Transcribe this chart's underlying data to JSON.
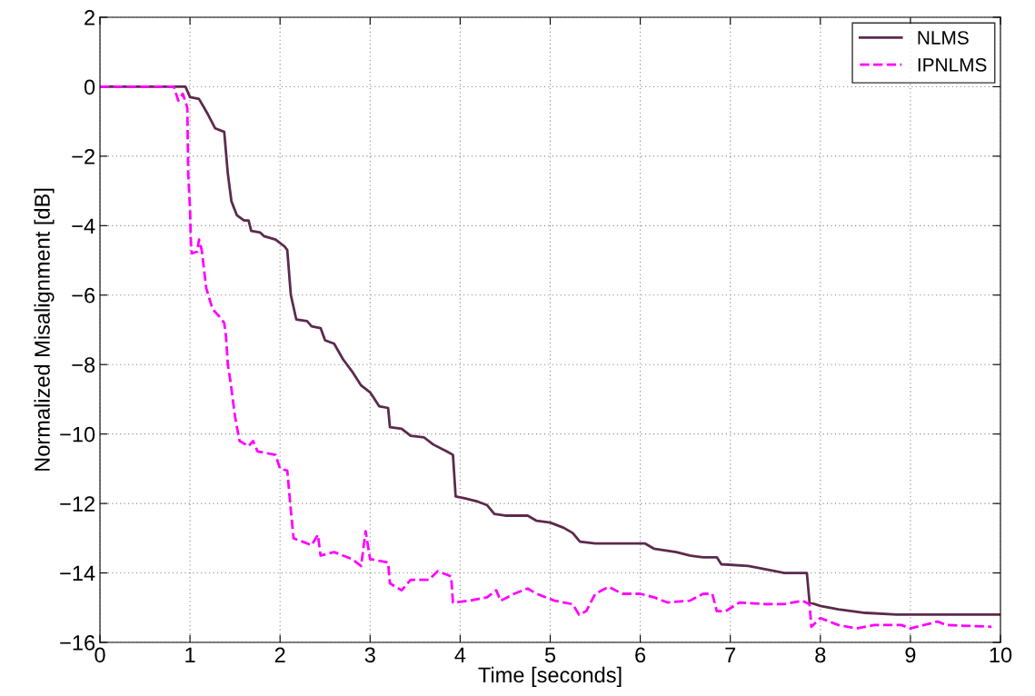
{
  "chart_data": {
    "type": "line",
    "xlabel": "Time [seconds]",
    "ylabel": "Normalized Misalignment [dB]",
    "xlim": [
      0,
      10
    ],
    "ylim": [
      -16,
      2
    ],
    "xticks": [
      0,
      1,
      2,
      3,
      4,
      5,
      6,
      7,
      8,
      9,
      10
    ],
    "yticks": [
      {
        "value": -16,
        "label": "−16"
      },
      {
        "value": -14,
        "label": "−14"
      },
      {
        "value": -12,
        "label": "−12"
      },
      {
        "value": -10,
        "label": "−10"
      },
      {
        "value": -8,
        "label": "−8"
      },
      {
        "value": -6,
        "label": "−6"
      },
      {
        "value": -4,
        "label": "−4"
      },
      {
        "value": -2,
        "label": "−2"
      },
      0,
      2
    ],
    "grid": true,
    "legend": "top right",
    "marker": "none",
    "series": [
      {
        "name": "NLMS",
        "color": "#5c2a4c",
        "line_style": "solid",
        "x": [
          0,
          0.95,
          1.0,
          1.1,
          1.2,
          1.28,
          1.38,
          1.42,
          1.46,
          1.52,
          1.6,
          1.65,
          1.68,
          1.78,
          1.82,
          1.95,
          2.05,
          2.08,
          2.12,
          2.18,
          2.3,
          2.35,
          2.45,
          2.5,
          2.6,
          2.7,
          2.8,
          2.9,
          3.0,
          3.1,
          3.2,
          3.22,
          3.35,
          3.45,
          3.6,
          3.7,
          3.85,
          3.92,
          3.95,
          4.05,
          4.2,
          4.3,
          4.38,
          4.5,
          4.75,
          4.85,
          5.0,
          5.15,
          5.25,
          5.33,
          5.5,
          6.05,
          6.15,
          6.4,
          6.55,
          6.7,
          6.85,
          6.9,
          7.2,
          7.5,
          7.6,
          7.85,
          7.88,
          8.0,
          8.2,
          8.5,
          8.85,
          10
        ],
        "values": [
          0,
          0,
          -0.3,
          -0.35,
          -0.8,
          -1.2,
          -1.3,
          -2.5,
          -3.3,
          -3.7,
          -3.85,
          -3.85,
          -4.15,
          -4.2,
          -4.3,
          -4.4,
          -4.6,
          -4.7,
          -6.0,
          -6.7,
          -6.75,
          -6.9,
          -6.95,
          -7.3,
          -7.4,
          -7.85,
          -8.2,
          -8.6,
          -8.8,
          -9.2,
          -9.25,
          -9.8,
          -9.85,
          -10.05,
          -10.1,
          -10.3,
          -10.5,
          -10.6,
          -11.8,
          -11.85,
          -11.95,
          -12.05,
          -12.3,
          -12.35,
          -12.35,
          -12.5,
          -12.55,
          -12.7,
          -12.85,
          -13.1,
          -13.15,
          -13.15,
          -13.3,
          -13.4,
          -13.5,
          -13.55,
          -13.55,
          -13.75,
          -13.8,
          -13.95,
          -14.0,
          -14.0,
          -14.85,
          -14.95,
          -15.05,
          -15.15,
          -15.2,
          -15.2
        ]
      },
      {
        "name": "IPNLMS",
        "color": "#ff00ff",
        "line_style": "dashed",
        "x": [
          0,
          0.82,
          0.87,
          0.92,
          0.97,
          0.98,
          1.0,
          1.01,
          1.02,
          1.08,
          1.1,
          1.13,
          1.18,
          1.25,
          1.32,
          1.38,
          1.4,
          1.42,
          1.45,
          1.5,
          1.55,
          1.65,
          1.7,
          1.75,
          1.85,
          1.95,
          2.0,
          2.08,
          2.12,
          2.15,
          2.25,
          2.35,
          2.42,
          2.45,
          2.6,
          2.8,
          2.9,
          2.95,
          3.0,
          3.2,
          3.22,
          3.35,
          3.45,
          3.65,
          3.75,
          3.9,
          3.92,
          4.1,
          4.3,
          4.4,
          4.45,
          4.6,
          4.75,
          4.85,
          5.05,
          5.25,
          5.32,
          5.4,
          5.5,
          5.65,
          5.8,
          6.0,
          6.15,
          6.3,
          6.55,
          6.7,
          6.8,
          6.85,
          6.95,
          7.1,
          7.4,
          7.6,
          7.8,
          7.88,
          7.9,
          8.0,
          8.2,
          8.4,
          8.6,
          8.9,
          9.0,
          9.3,
          9.4,
          9.9
        ],
        "values": [
          0,
          0,
          -0.4,
          -0.2,
          -0.6,
          -2.5,
          -3.5,
          -4.5,
          -4.8,
          -4.75,
          -4.4,
          -4.7,
          -5.8,
          -6.4,
          -6.6,
          -6.8,
          -7.2,
          -8.0,
          -8.5,
          -9.5,
          -10.2,
          -10.35,
          -10.2,
          -10.5,
          -10.55,
          -10.6,
          -11.0,
          -11.05,
          -12.2,
          -13.0,
          -13.1,
          -13.2,
          -12.9,
          -13.5,
          -13.4,
          -13.6,
          -13.8,
          -12.8,
          -13.6,
          -13.7,
          -14.3,
          -14.5,
          -14.2,
          -14.2,
          -13.95,
          -14.1,
          -14.85,
          -14.8,
          -14.7,
          -14.5,
          -14.8,
          -14.6,
          -14.45,
          -14.6,
          -14.8,
          -14.9,
          -15.2,
          -15.1,
          -14.6,
          -14.4,
          -14.6,
          -14.6,
          -14.7,
          -14.85,
          -14.8,
          -14.6,
          -14.6,
          -15.1,
          -15.1,
          -14.85,
          -14.9,
          -14.9,
          -14.8,
          -14.9,
          -15.55,
          -15.3,
          -15.5,
          -15.6,
          -15.5,
          -15.5,
          -15.6,
          -15.4,
          -15.5,
          -15.55
        ]
      }
    ]
  }
}
